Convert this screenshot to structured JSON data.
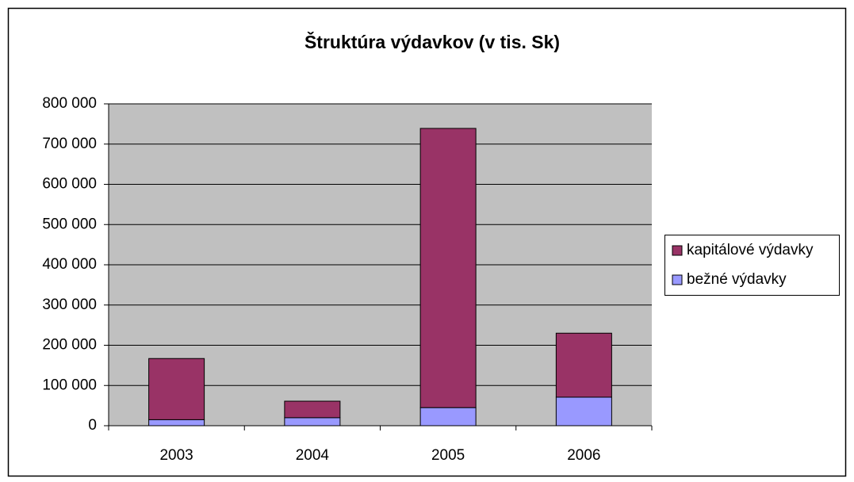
{
  "chart_data": {
    "type": "stacked_bar",
    "title": "Štruktúra výdavkov (v tis. Sk)",
    "categories": [
      "2003",
      "2004",
      "2005",
      "2006"
    ],
    "series": [
      {
        "name": "bežné výdavky",
        "color": "#9999ff",
        "values": [
          15000,
          20000,
          45000,
          71000
        ]
      },
      {
        "name": "kapitálové výdavky",
        "color": "#993366",
        "values": [
          152000,
          41000,
          694000,
          159000
        ]
      }
    ],
    "ylim": [
      0,
      800000
    ],
    "yticks": [
      0,
      {
        "value": 100000,
        "label": "100 000"
      },
      {
        "value": 200000,
        "label": "200 000"
      },
      {
        "value": 300000,
        "label": "300 000"
      },
      {
        "value": 400000,
        "label": "400 000"
      },
      {
        "value": 500000,
        "label": "500 000"
      },
      {
        "value": 600000,
        "label": "600 000"
      },
      {
        "value": 700000,
        "label": "700 000"
      },
      {
        "value": 800000,
        "label": "800 000"
      }
    ],
    "grid": true,
    "legend": "right",
    "plot_background": "#c0c0c0"
  }
}
